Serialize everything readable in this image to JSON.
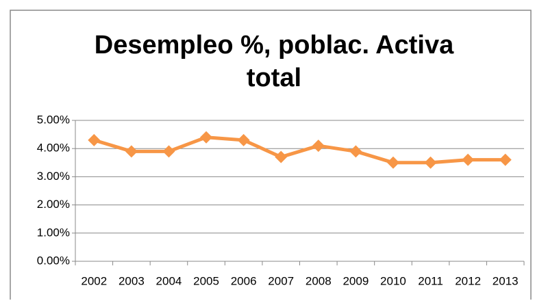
{
  "chart_data": {
    "type": "line",
    "title": "Desempleo %, poblac. Activa total",
    "categories": [
      "2002",
      "2003",
      "2004",
      "2005",
      "2006",
      "2007",
      "2008",
      "2009",
      "2010",
      "2011",
      "2012",
      "2013"
    ],
    "series": [
      {
        "name": "Desempleo",
        "color": "#f79646",
        "values": [
          4.3,
          3.9,
          3.9,
          4.4,
          4.3,
          3.7,
          4.1,
          3.9,
          3.5,
          3.5,
          3.6,
          3.6
        ]
      }
    ],
    "ylim": [
      0,
      5
    ],
    "yticks": [
      {
        "value": 0,
        "label": "0.00%"
      },
      {
        "value": 1,
        "label": "1.00%"
      },
      {
        "value": 2,
        "label": "2.00%"
      },
      {
        "value": 3,
        "label": "3.00%"
      },
      {
        "value": 4,
        "label": "4.00%"
      },
      {
        "value": 5,
        "label": "5.00%"
      }
    ],
    "grid": true
  }
}
